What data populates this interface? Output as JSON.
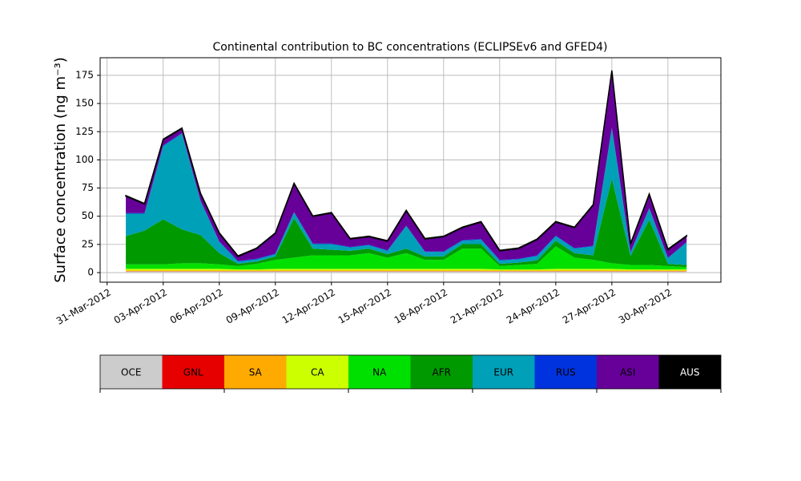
{
  "chart_data": {
    "type": "stacked_area",
    "title": "Continental contribution to BC concentrations (ECLIPSEv6 and GFED4)",
    "y_label": "Surface concentration (ng m⁻³)",
    "x": [
      "2012-04-01",
      "2012-04-02",
      "2012-04-03",
      "2012-04-04",
      "2012-04-05",
      "2012-04-06",
      "2012-04-07",
      "2012-04-08",
      "2012-04-09",
      "2012-04-10",
      "2012-04-11",
      "2012-04-12",
      "2012-04-13",
      "2012-04-14",
      "2012-04-15",
      "2012-04-16",
      "2012-04-17",
      "2012-04-18",
      "2012-04-19",
      "2012-04-20",
      "2012-04-21",
      "2012-04-22",
      "2012-04-23",
      "2012-04-24",
      "2012-04-25",
      "2012-04-26",
      "2012-04-27",
      "2012-04-28",
      "2012-04-29",
      "2012-04-30",
      "2012-05-01"
    ],
    "series": [
      {
        "name": "OCE",
        "color": "#cccccc",
        "values": [
          1,
          1,
          1,
          1,
          1,
          1,
          1,
          1,
          1,
          1,
          1,
          1,
          1,
          1,
          1,
          1,
          1,
          1,
          1,
          1,
          1,
          1,
          1,
          1,
          1,
          1,
          1,
          1,
          1,
          1,
          1
        ]
      },
      {
        "name": "GNL",
        "color": "#e60000",
        "values": [
          0.3,
          0.3,
          0.3,
          0.3,
          0.3,
          0.3,
          0.3,
          0.3,
          0.3,
          0.3,
          0.3,
          0.3,
          0.3,
          0.3,
          0.3,
          0.3,
          0.3,
          0.3,
          0.3,
          0.3,
          0.3,
          0.3,
          0.3,
          0.3,
          0.3,
          0.3,
          0.3,
          0.3,
          0.3,
          0.3,
          0.3
        ]
      },
      {
        "name": "SA",
        "color": "#ffaa00",
        "values": [
          0.5,
          0.5,
          0.5,
          0.5,
          0.5,
          0.5,
          0.5,
          0.5,
          0.5,
          0.5,
          0.5,
          0.5,
          0.5,
          0.5,
          0.5,
          0.5,
          0.5,
          0.5,
          0.5,
          0.5,
          0.5,
          0.5,
          0.5,
          0.5,
          0.5,
          0.5,
          0.5,
          0.5,
          0.5,
          0.5,
          0.5
        ]
      },
      {
        "name": "CA",
        "color": "#ccff00",
        "values": [
          1.5,
          1.5,
          1.5,
          1.5,
          1.5,
          1.5,
          1,
          1,
          1.5,
          1.5,
          1.5,
          1.5,
          1.5,
          1.5,
          1.5,
          1.5,
          1.5,
          1.5,
          1.5,
          1.5,
          1,
          1,
          1,
          1.5,
          1.5,
          1.5,
          1.5,
          1,
          1,
          1,
          1
        ]
      },
      {
        "name": "NA",
        "color": "#00e000",
        "values": [
          4,
          4,
          4,
          5,
          5,
          4,
          3,
          5,
          8,
          10,
          12,
          12,
          12,
          14,
          10,
          14,
          8,
          8,
          18,
          18,
          3,
          4,
          5,
          20,
          10,
          8,
          5,
          4,
          4,
          3,
          2
        ]
      },
      {
        "name": "AFR",
        "color": "#009900",
        "values": [
          25,
          30,
          40,
          30,
          25,
          10,
          2,
          2,
          3,
          35,
          6,
          5,
          4,
          4,
          3,
          4,
          3,
          3,
          4,
          4,
          2,
          2,
          3,
          5,
          4,
          4,
          75,
          8,
          40,
          2,
          2
        ]
      },
      {
        "name": "EUR",
        "color": "#00a0b8",
        "values": [
          20,
          15,
          65,
          85,
          30,
          10,
          2,
          2,
          2,
          5,
          4,
          5,
          3,
          3,
          3,
          20,
          4,
          4,
          3,
          4,
          3,
          3,
          4,
          4,
          4,
          8,
          45,
          3,
          10,
          5,
          20
        ]
      },
      {
        "name": "RUS",
        "color": "#0033dd",
        "values": [
          0.5,
          0.5,
          0.5,
          0.5,
          0.5,
          0.5,
          0.5,
          0.5,
          0.5,
          0.5,
          0.5,
          0.5,
          0.5,
          0.5,
          0.5,
          0.5,
          0.5,
          0.5,
          0.5,
          0.5,
          0.5,
          0.5,
          0.5,
          0.5,
          0.5,
          0.5,
          0.5,
          0.5,
          0.5,
          0.5,
          0.5
        ]
      },
      {
        "name": "ASI",
        "color": "#660099",
        "values": [
          15,
          8,
          5,
          4,
          6,
          7,
          4,
          9,
          18,
          25,
          24,
          27,
          7,
          7,
          8,
          13,
          11,
          13,
          11,
          15,
          8,
          9,
          14,
          12,
          18,
          36,
          50,
          7,
          12,
          7,
          5
        ]
      },
      {
        "name": "AUS",
        "color": "#000000",
        "values": [
          0.5,
          0.5,
          0.5,
          0.5,
          0.5,
          0.5,
          0.5,
          0.5,
          0.5,
          0.5,
          0.5,
          0.5,
          0.5,
          0.5,
          0.5,
          0.5,
          0.5,
          0.5,
          0.5,
          0.5,
          0.5,
          0.5,
          0.5,
          0.5,
          0.5,
          0.5,
          0.5,
          0.5,
          0.5,
          0.5,
          0.5
        ]
      }
    ],
    "xlim": [
      "2012-03-30T15:00",
      "2012-05-02T20:00"
    ],
    "xticks": [
      {
        "value": "2012-03-31",
        "label": "31-Mar-2012"
      },
      {
        "value": "2012-04-03",
        "label": "03-Apr-2012"
      },
      {
        "value": "2012-04-06",
        "label": "06-Apr-2012"
      },
      {
        "value": "2012-04-09",
        "label": "09-Apr-2012"
      },
      {
        "value": "2012-04-12",
        "label": "12-Apr-2012"
      },
      {
        "value": "2012-04-15",
        "label": "15-Apr-2012"
      },
      {
        "value": "2012-04-18",
        "label": "18-Apr-2012"
      },
      {
        "value": "2012-04-21",
        "label": "21-Apr-2012"
      },
      {
        "value": "2012-04-24",
        "label": "24-Apr-2012"
      },
      {
        "value": "2012-04-27",
        "label": "27-Apr-2012"
      },
      {
        "value": "2012-04-30",
        "label": "30-Apr-2012"
      }
    ],
    "ylim": [
      -8.5,
      190.6
    ],
    "yticks": [
      0,
      25,
      50,
      75,
      100,
      125,
      150,
      175
    ],
    "grid": true
  }
}
